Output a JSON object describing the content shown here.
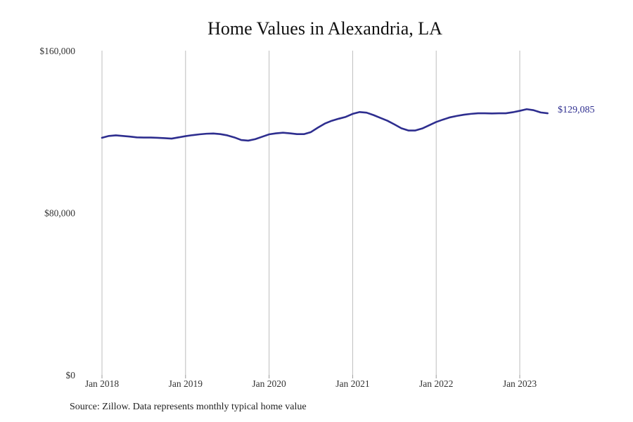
{
  "chart_data": {
    "type": "line",
    "title": "Home Values in Alexandria, LA",
    "xlabel": "",
    "ylabel": "",
    "ylim": [
      0,
      160000
    ],
    "yticks": [
      {
        "value": 0,
        "label": "$0"
      },
      {
        "value": 80000,
        "label": "$80,000"
      },
      {
        "value": 160000,
        "label": "$160,000"
      }
    ],
    "xticks": [
      {
        "value": "2018-01",
        "label": "Jan 2018"
      },
      {
        "value": "2019-01",
        "label": "Jan 2019"
      },
      {
        "value": "2020-01",
        "label": "Jan 2020"
      },
      {
        "value": "2021-01",
        "label": "Jan 2021"
      },
      {
        "value": "2022-01",
        "label": "Jan 2022"
      },
      {
        "value": "2023-01",
        "label": "Jan 2023"
      }
    ],
    "grid": "vertical",
    "line_color": "#2e2e8f",
    "end_label": "$129,085",
    "series": [
      {
        "x": [
          "2018-01",
          "2018-02",
          "2018-03",
          "2018-04",
          "2018-05",
          "2018-06",
          "2018-07",
          "2018-08",
          "2018-09",
          "2018-10",
          "2018-11",
          "2018-12",
          "2019-01",
          "2019-02",
          "2019-03",
          "2019-04",
          "2019-05",
          "2019-06",
          "2019-07",
          "2019-08",
          "2019-09",
          "2019-10",
          "2019-11",
          "2019-12",
          "2020-01",
          "2020-02",
          "2020-03",
          "2020-04",
          "2020-05",
          "2020-06",
          "2020-07",
          "2020-08",
          "2020-09",
          "2020-10",
          "2020-11",
          "2020-12",
          "2021-01",
          "2021-02",
          "2021-03",
          "2021-04",
          "2021-05",
          "2021-06",
          "2021-07",
          "2021-08",
          "2021-09",
          "2021-10",
          "2021-11",
          "2021-12",
          "2022-01",
          "2022-02",
          "2022-03",
          "2022-04",
          "2022-05",
          "2022-06",
          "2022-07",
          "2022-08",
          "2022-09",
          "2022-10",
          "2022-11",
          "2022-12",
          "2023-01",
          "2023-02",
          "2023-03",
          "2023-04",
          "2023-05"
        ],
        "values": [
          117000,
          117900,
          118200,
          117900,
          117600,
          117200,
          117100,
          117100,
          117000,
          116800,
          116600,
          117200,
          117800,
          118300,
          118700,
          119000,
          119100,
          118800,
          118200,
          117200,
          115900,
          115600,
          116300,
          117500,
          118700,
          119200,
          119500,
          119200,
          118800,
          118800,
          119800,
          122000,
          124000,
          125400,
          126400,
          127300,
          128800,
          129700,
          129400,
          128200,
          126800,
          125400,
          123600,
          121700,
          120600,
          120600,
          121600,
          123200,
          124800,
          126000,
          127100,
          127800,
          128400,
          128800,
          129100,
          129100,
          129000,
          129100,
          129100,
          129600,
          130300,
          131100,
          130600,
          129500,
          129085
        ]
      }
    ]
  },
  "source_note": "Source: Zillow. Data represents monthly typical home value"
}
